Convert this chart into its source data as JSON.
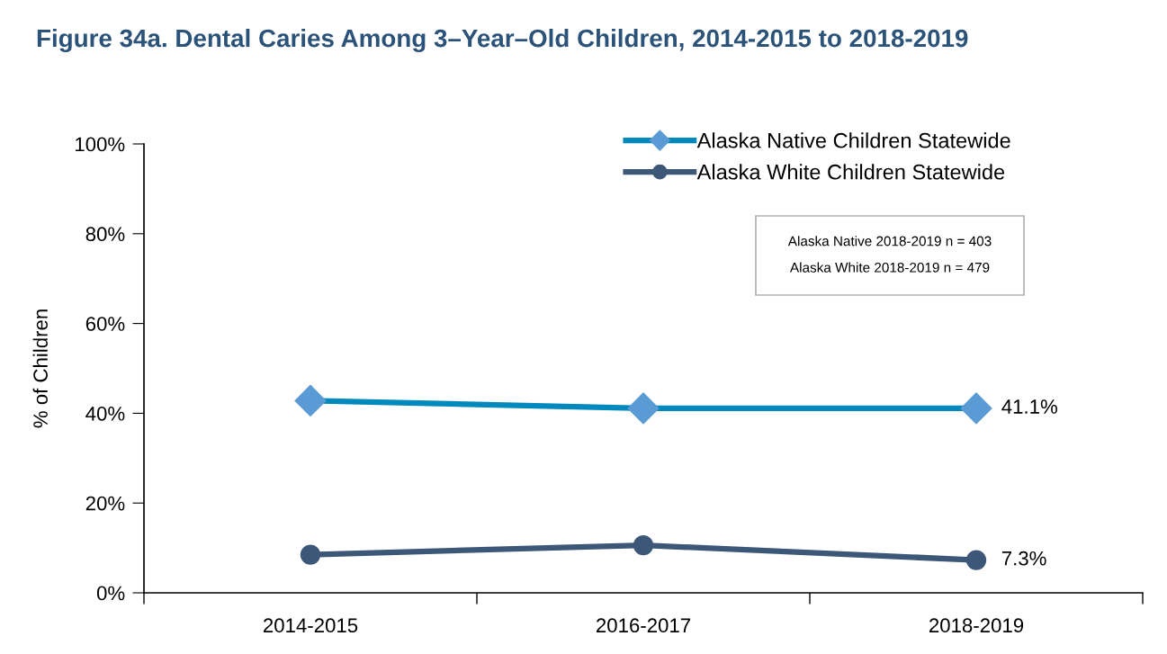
{
  "chart_data": {
    "type": "line",
    "title": "Figure 34a. Dental Caries Among 3–Year–Old Children, 2014-2015 to 2018-2019",
    "ylabel": "% of Children",
    "categories": [
      "2014-2015",
      "2016-2017",
      "2018-2019"
    ],
    "series": [
      {
        "name": "Alaska Native Children Statewide",
        "color": "#0089bd",
        "colors": [
          "#5b9bd5",
          "#5b9bd5",
          "#5b9bd5"
        ],
        "marker": "diamond",
        "values": [
          42.8,
          41.1,
          41.1
        ],
        "value_labels": [
          null,
          null,
          "41.1%"
        ]
      },
      {
        "name": "Alaska White Children Statewide",
        "color": "#3d5778",
        "marker": "circle",
        "values": [
          8.5,
          10.6,
          7.3
        ],
        "value_labels": [
          null,
          null,
          "7.3%"
        ]
      }
    ],
    "ylim": [
      0,
      100
    ],
    "yticks": [
      {
        "value": 0,
        "label": "0%"
      },
      {
        "value": 20,
        "label": "20%"
      },
      {
        "value": 40,
        "label": "40%"
      },
      {
        "value": 60,
        "label": "60%"
      },
      {
        "value": 80,
        "label": "80%"
      },
      {
        "value": 100,
        "label": "100%"
      }
    ],
    "grid": false,
    "legend": "top right",
    "line_style": "solid",
    "annotations": [
      "Alaska Native 2018-2019 n = 403",
      "Alaska White 2018-2019 n = 479"
    ]
  }
}
